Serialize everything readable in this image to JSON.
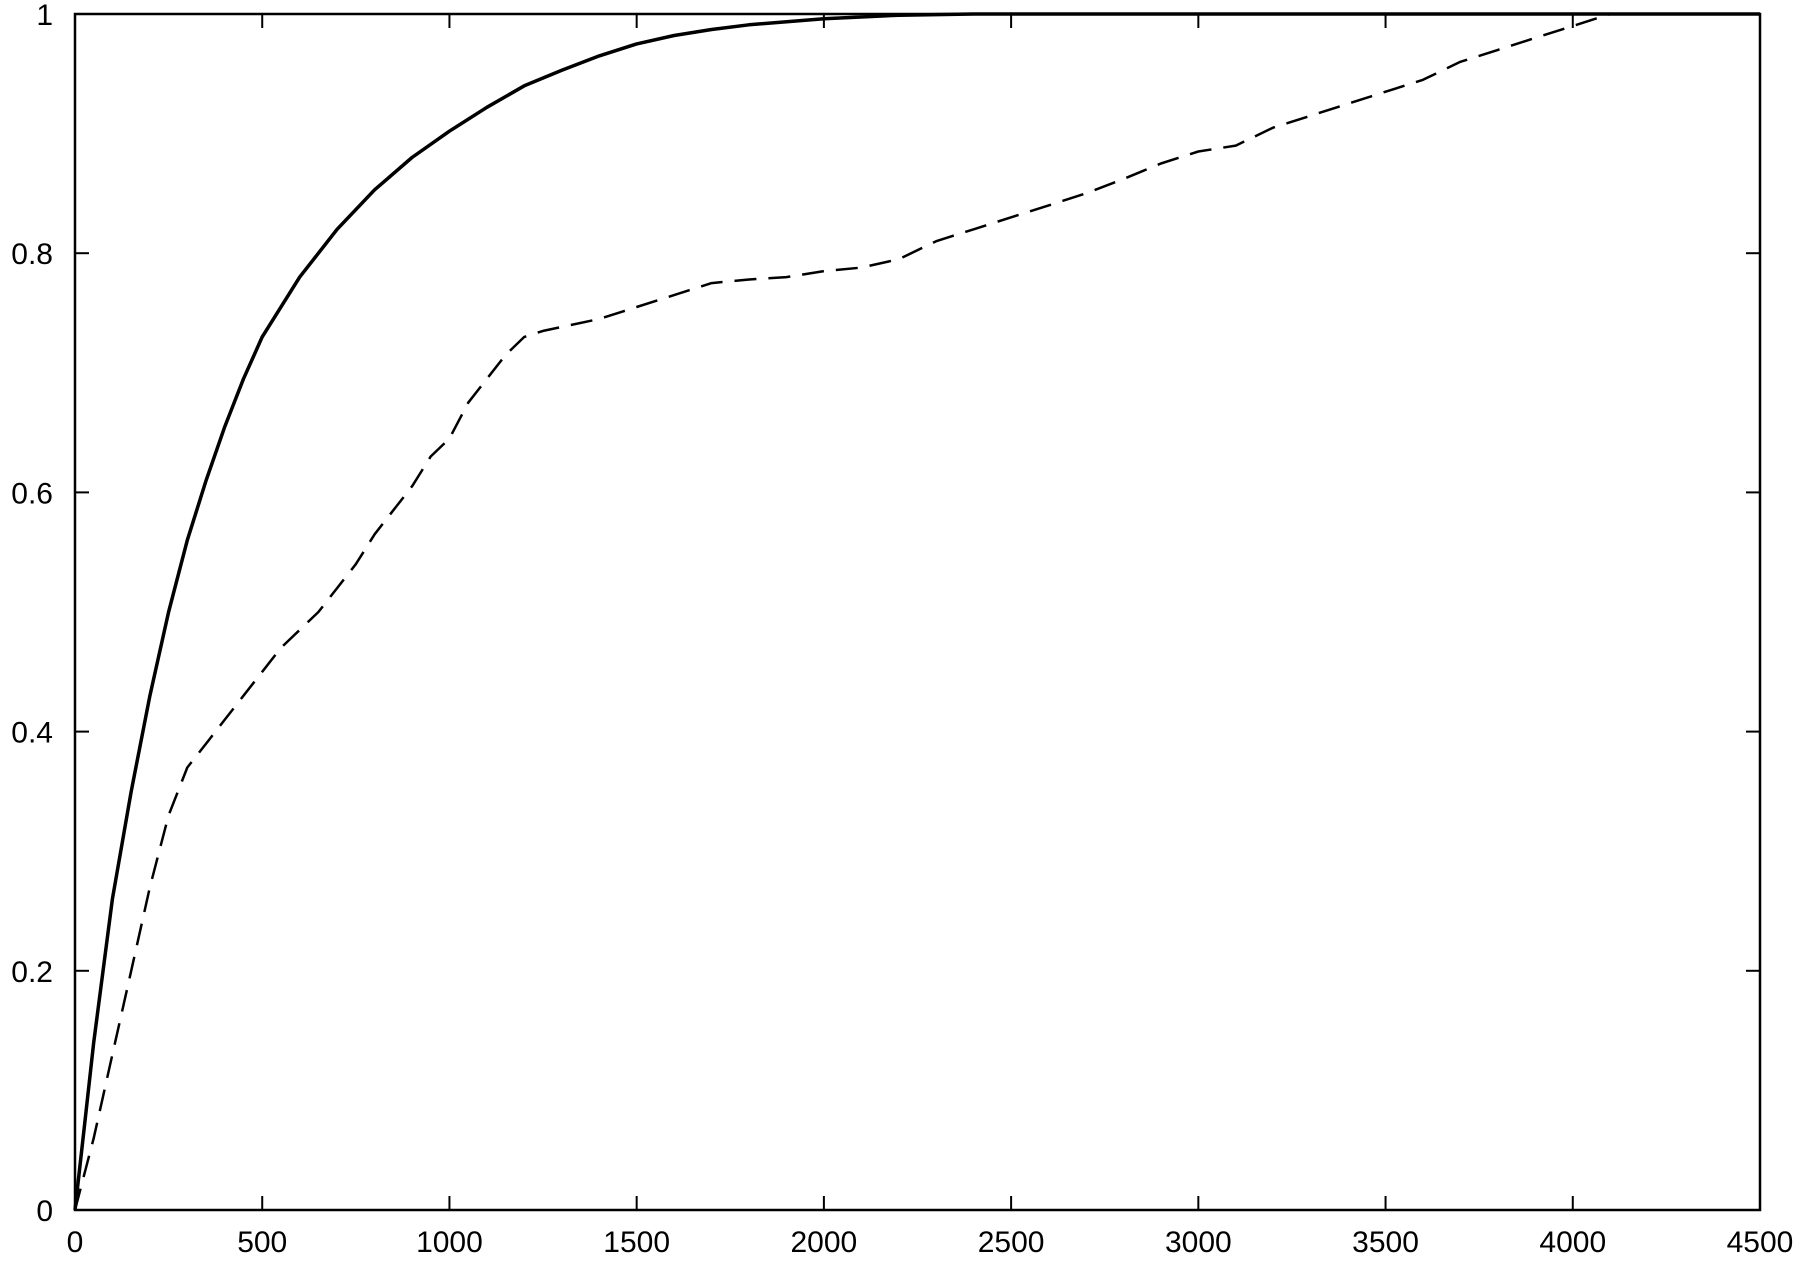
{
  "chart_data": {
    "type": "line",
    "title": "",
    "xlabel": "",
    "ylabel": "",
    "xlim": [
      0,
      4500
    ],
    "ylim": [
      0,
      1
    ],
    "grid": false,
    "legend": "none",
    "x_ticks": [
      "0",
      "500",
      "1000",
      "1500",
      "2000",
      "2500",
      "3000",
      "3500",
      "4000",
      "4500"
    ],
    "y_ticks": [
      "0",
      "0.2",
      "0.4",
      "0.6",
      "0.8",
      "1"
    ],
    "series": [
      {
        "style": "solid",
        "color": "#000000",
        "points": [
          [
            0,
            0
          ],
          [
            25,
            0.07
          ],
          [
            50,
            0.14
          ],
          [
            100,
            0.26
          ],
          [
            150,
            0.35
          ],
          [
            200,
            0.43
          ],
          [
            250,
            0.5
          ],
          [
            300,
            0.56
          ],
          [
            350,
            0.61
          ],
          [
            400,
            0.655
          ],
          [
            450,
            0.695
          ],
          [
            500,
            0.73
          ],
          [
            600,
            0.78
          ],
          [
            700,
            0.82
          ],
          [
            800,
            0.853
          ],
          [
            900,
            0.88
          ],
          [
            1000,
            0.902
          ],
          [
            1100,
            0.922
          ],
          [
            1200,
            0.94
          ],
          [
            1300,
            0.953
          ],
          [
            1400,
            0.965
          ],
          [
            1500,
            0.975
          ],
          [
            1600,
            0.982
          ],
          [
            1700,
            0.987
          ],
          [
            1800,
            0.991
          ],
          [
            2000,
            0.996
          ],
          [
            2200,
            0.999
          ],
          [
            2400,
            1.0
          ],
          [
            4500,
            1.0
          ]
        ]
      },
      {
        "style": "dashed",
        "color": "#000000",
        "points": [
          [
            0,
            0
          ],
          [
            50,
            0.06
          ],
          [
            100,
            0.13
          ],
          [
            150,
            0.2
          ],
          [
            200,
            0.27
          ],
          [
            250,
            0.33
          ],
          [
            300,
            0.37
          ],
          [
            350,
            0.39
          ],
          [
            400,
            0.41
          ],
          [
            450,
            0.43
          ],
          [
            500,
            0.45
          ],
          [
            550,
            0.47
          ],
          [
            600,
            0.485
          ],
          [
            650,
            0.5
          ],
          [
            700,
            0.52
          ],
          [
            750,
            0.54
          ],
          [
            800,
            0.565
          ],
          [
            850,
            0.585
          ],
          [
            900,
            0.605
          ],
          [
            950,
            0.63
          ],
          [
            1000,
            0.645
          ],
          [
            1050,
            0.675
          ],
          [
            1100,
            0.695
          ],
          [
            1150,
            0.715
          ],
          [
            1200,
            0.73
          ],
          [
            1250,
            0.735
          ],
          [
            1400,
            0.745
          ],
          [
            1500,
            0.755
          ],
          [
            1600,
            0.765
          ],
          [
            1700,
            0.775
          ],
          [
            1800,
            0.778
          ],
          [
            1900,
            0.78
          ],
          [
            2000,
            0.785
          ],
          [
            2100,
            0.788
          ],
          [
            2200,
            0.795
          ],
          [
            2300,
            0.81
          ],
          [
            2400,
            0.82
          ],
          [
            2500,
            0.83
          ],
          [
            2600,
            0.84
          ],
          [
            2700,
            0.85
          ],
          [
            2800,
            0.862
          ],
          [
            2900,
            0.875
          ],
          [
            3000,
            0.885
          ],
          [
            3100,
            0.89
          ],
          [
            3200,
            0.905
          ],
          [
            3300,
            0.915
          ],
          [
            3400,
            0.925
          ],
          [
            3500,
            0.935
          ],
          [
            3600,
            0.945
          ],
          [
            3700,
            0.96
          ],
          [
            3800,
            0.97
          ],
          [
            3900,
            0.98
          ],
          [
            4000,
            0.99
          ],
          [
            4100,
            1.0
          ]
        ]
      }
    ]
  }
}
